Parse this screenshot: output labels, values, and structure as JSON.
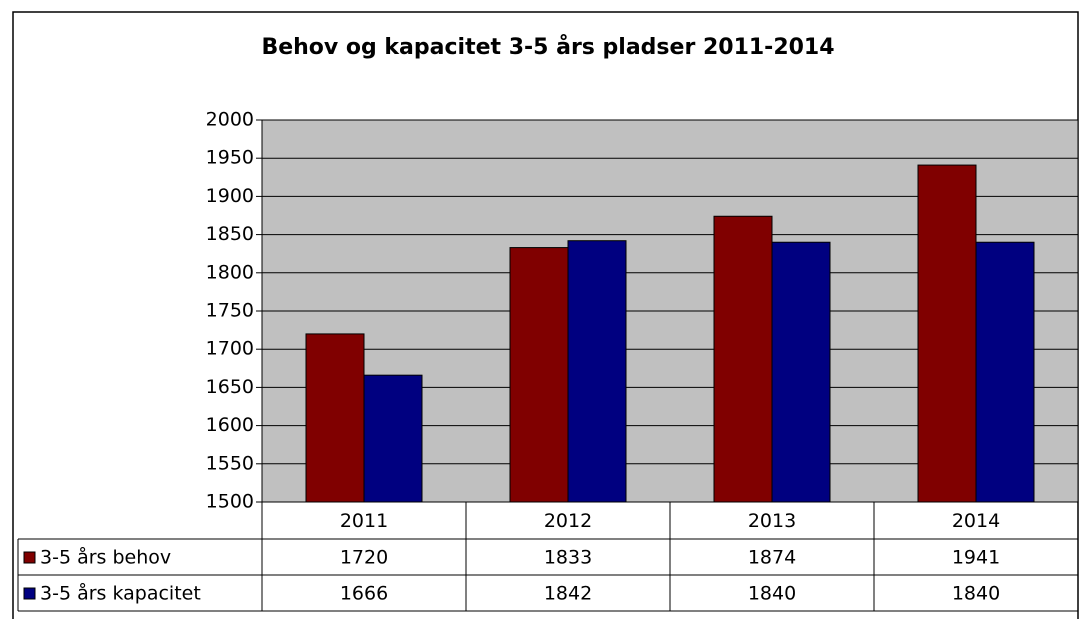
{
  "chart_data": {
    "type": "bar",
    "title": "Behov og kapacitet 3-5 års pladser 2011-2014",
    "categories": [
      "2011",
      "2012",
      "2013",
      "2014"
    ],
    "series": [
      {
        "name": "3-5 års behov",
        "color": "#800000",
        "values": [
          1720,
          1833,
          1874,
          1941
        ]
      },
      {
        "name": "3-5 års kapacitet",
        "color": "#000080",
        "values": [
          1666,
          1842,
          1840,
          1840
        ]
      }
    ],
    "ylim": [
      1500,
      2000
    ],
    "yticks": [
      1500,
      1550,
      1600,
      1650,
      1700,
      1750,
      1800,
      1850,
      1900,
      1950,
      2000
    ],
    "grid": true,
    "plot_background": "#c0c0c0"
  }
}
